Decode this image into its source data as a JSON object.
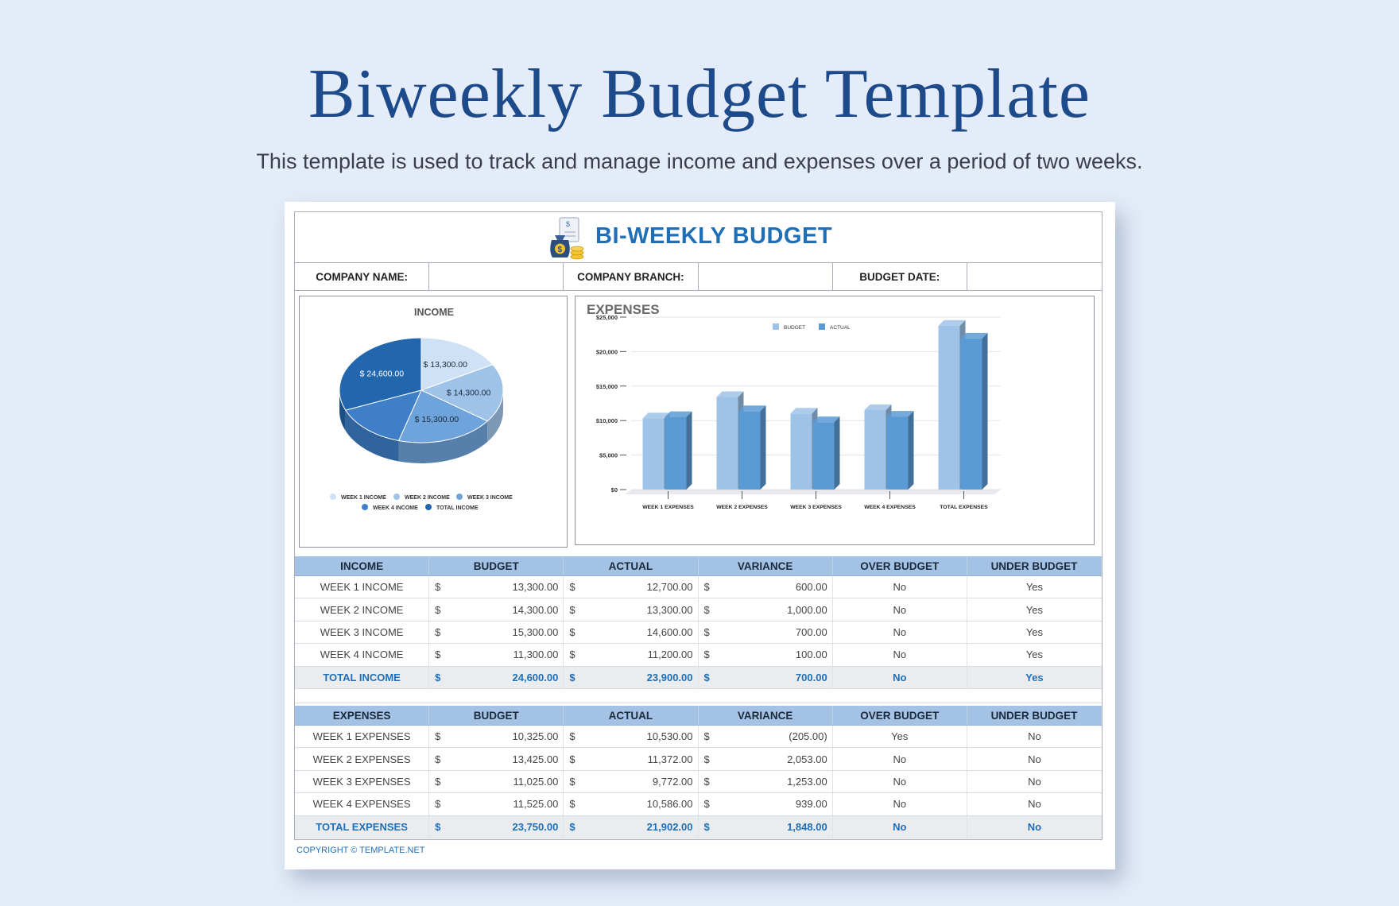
{
  "page": {
    "title": "Biweekly Budget Template",
    "subtitle": "This template is used to track and manage income and expenses over a period of two weeks."
  },
  "sheet": {
    "title": "BI-WEEKLY BUDGET",
    "icon": "money-bag-icon",
    "info_fields": [
      "COMPANY NAME:",
      "",
      "COMPANY BRANCH:",
      "",
      "BUDGET DATE:",
      ""
    ],
    "copyright": "COPYRIGHT © TEMPLATE.NET"
  },
  "income_chart": {
    "type": "pie",
    "title": "INCOME",
    "slice_labels": [
      "$ 13,300.00",
      "$ 14,300.00",
      "$ 15,300.00",
      "",
      "$ 24,600.00"
    ],
    "values": [
      13300,
      14300,
      15300,
      11300,
      24600
    ],
    "legend": [
      "WEEK 1 INCOME",
      "WEEK 2 INCOME",
      "WEEK 3 INCOME",
      "WEEK 4 INCOME",
      "TOTAL INCOME"
    ],
    "colors": [
      "#cfe1f4",
      "#9fc3e8",
      "#6fa3db",
      "#3f7fc8",
      "#2266ad"
    ],
    "legend_placement": "bottom"
  },
  "chart_data": {
    "type": "bar",
    "title": "EXPENSES",
    "categories": [
      "WEEK 1 EXPENSES",
      "WEEK 2 EXPENSES",
      "WEEK 3 EXPENSES",
      "WEEK 4 EXPENSES",
      "TOTAL EXPENSES"
    ],
    "series": [
      {
        "name": "BUDGET",
        "values": [
          10325,
          13425,
          11025,
          11525,
          23750
        ],
        "color": "#9fc3e8"
      },
      {
        "name": "ACTUAL",
        "values": [
          10530,
          11372,
          9772,
          10586,
          21902
        ],
        "color": "#5b9bd5"
      }
    ],
    "ylim": [
      0,
      25000
    ],
    "yticks": [
      "$0",
      "$5,000",
      "$10,000",
      "$15,000",
      "$20,000",
      "$25,000"
    ],
    "grid": true,
    "legend_placement": "top"
  },
  "income_table": {
    "headers": [
      "INCOME",
      "BUDGET",
      "ACTUAL",
      "VARIANCE",
      "OVER BUDGET",
      "UNDER BUDGET"
    ],
    "rows": [
      {
        "label": "WEEK 1 INCOME",
        "budget": "13,300.00",
        "actual": "12,700.00",
        "variance": "600.00",
        "over": "No",
        "under": "Yes"
      },
      {
        "label": "WEEK 2 INCOME",
        "budget": "14,300.00",
        "actual": "13,300.00",
        "variance": "1,000.00",
        "over": "No",
        "under": "Yes"
      },
      {
        "label": "WEEK 3 INCOME",
        "budget": "15,300.00",
        "actual": "14,600.00",
        "variance": "700.00",
        "over": "No",
        "under": "Yes"
      },
      {
        "label": "WEEK 4 INCOME",
        "budget": "11,300.00",
        "actual": "11,200.00",
        "variance": "100.00",
        "over": "No",
        "under": "Yes"
      }
    ],
    "total": {
      "label": "TOTAL INCOME",
      "budget": "24,600.00",
      "actual": "23,900.00",
      "variance": "700.00",
      "over": "No",
      "under": "Yes"
    }
  },
  "expense_table": {
    "headers": [
      "EXPENSES",
      "BUDGET",
      "ACTUAL",
      "VARIANCE",
      "OVER BUDGET",
      "UNDER BUDGET"
    ],
    "rows": [
      {
        "label": "WEEK 1 EXPENSES",
        "budget": "10,325.00",
        "actual": "10,530.00",
        "variance": "(205.00)",
        "over": "Yes",
        "under": "No"
      },
      {
        "label": "WEEK 2 EXPENSES",
        "budget": "13,425.00",
        "actual": "11,372.00",
        "variance": "2,053.00",
        "over": "No",
        "under": "No"
      },
      {
        "label": "WEEK 3 EXPENSES",
        "budget": "11,025.00",
        "actual": "9,772.00",
        "variance": "1,253.00",
        "over": "No",
        "under": "No"
      },
      {
        "label": "WEEK 4 EXPENSES",
        "budget": "11,525.00",
        "actual": "10,586.00",
        "variance": "939.00",
        "over": "No",
        "under": "No"
      }
    ],
    "total": {
      "label": "TOTAL EXPENSES",
      "budget": "23,750.00",
      "actual": "21,902.00",
      "variance": "1,848.00",
      "over": "No",
      "under": "No"
    }
  },
  "currency_symbol": "$"
}
